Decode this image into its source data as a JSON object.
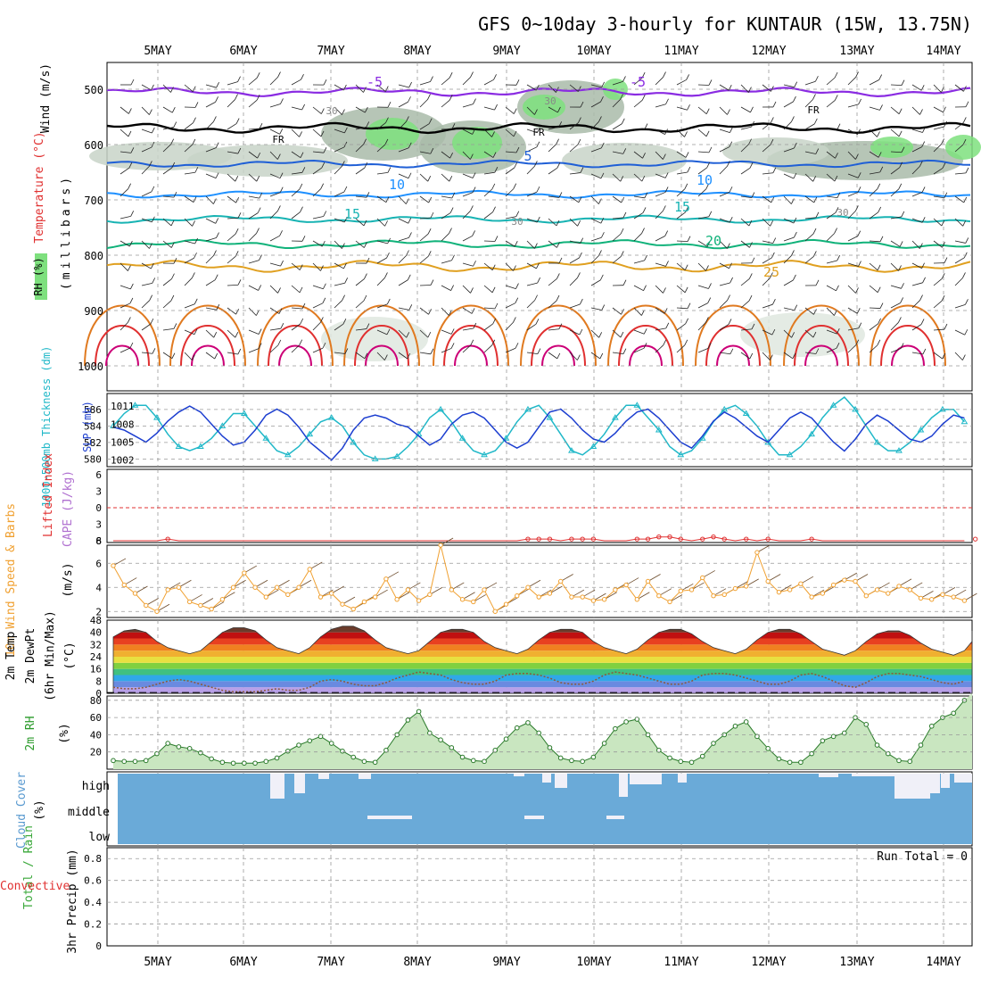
{
  "title": "GFS 0~10day 3-hourly for KUNTAUR (15W, 13.75N)",
  "dates": [
    "5MAY",
    "6MAY",
    "7MAY",
    "8MAY",
    "9MAY",
    "10MAY",
    "11MAY",
    "12MAY",
    "13MAY",
    "14MAY"
  ],
  "colors": {
    "rh_fill": "#7ee07e",
    "rh_dark": "#a9bba9",
    "temp_cold": "#8a2be2",
    "temp_freeze": "#000000",
    "temp_5": "#1f5fd6",
    "temp_10": "#1e90ff",
    "temp_15": "#17b3b3",
    "temp_20": "#10b27a",
    "temp_25": "#e0a020",
    "temp_30": "#e07a20",
    "temp_35": "#e03030",
    "temp_40": "#cc0077",
    "thickness": "#20b8c8",
    "slp": "#1c3ed0",
    "li_line": "#e03030",
    "cape": "#b070d0",
    "wind10": "#f0a030",
    "cloud_bg": "#6aaad8",
    "cloud_fill": "#f0f0f8"
  },
  "panels": {
    "upper": {
      "ylabel_wind": "Wind (m/s)",
      "ylabel_temp": "Temperature (°C)",
      "ylabel_rh": "RH (%)",
      "ylabel_mb": "(millibars)",
      "y_ticks": [
        "500",
        "600",
        "700",
        "800",
        "900",
        "1000"
      ],
      "contour_labels": [
        "-5",
        "-5",
        "FR",
        "FR",
        "FR",
        "5",
        "10",
        "10",
        "15",
        "15",
        "20",
        "25",
        "30",
        "30",
        "30",
        "30"
      ]
    },
    "pressure": {
      "ylabel_thick": "1000-500mb Thickness (dm)",
      "ylabel_slp": "SLP (mb)",
      "left_ticks": [
        "586",
        "584",
        "582",
        "580"
      ],
      "right_ticks": [
        "1011",
        "1008",
        "1005",
        "1002"
      ]
    },
    "li": {
      "ylabel_li": "Lifted Index",
      "ylabel_cape": "CAPE (J/kg)",
      "ticks": [
        "6",
        "3",
        "0",
        "3",
        "6"
      ],
      "cape_tick": "8"
    },
    "wind10": {
      "ylabel": "10m Wind Speed & Barbs",
      "unit": "(m/s)",
      "ticks": [
        "6",
        "4",
        "2"
      ]
    },
    "temp2m": {
      "ylabel_a": "2m Temp",
      "ylabel_b": "2m DewPt",
      "ylabel_c": "(6hr Min/Max)",
      "unit": "(°C)",
      "ticks": [
        "48",
        "40",
        "32",
        "24",
        "16",
        "8",
        "0"
      ]
    },
    "rh2m": {
      "ylabel": "2m RH",
      "unit": "(%)",
      "ticks": [
        "80",
        "60",
        "40",
        "20"
      ]
    },
    "cloud": {
      "ylabel": "Cloud Cover",
      "unit": "(%)",
      "levels": [
        "high",
        "middle",
        "low"
      ]
    },
    "precip": {
      "ylabel_total": "Total / Rain",
      "ylabel_conv": "Convective",
      "ylabel_main": "3hr Precip (mm)",
      "ticks": [
        "0.8",
        "0.6",
        "0.4",
        "0.2",
        "0"
      ],
      "run_total": "Run Total = 0"
    }
  },
  "chart_data": [
    {
      "type": "line",
      "name": "1000-500mb Thickness (dm)",
      "xlabel": "",
      "ylabel": "1000-500mb Thickness (dm)",
      "ylim": [
        579.5,
        587.5
      ],
      "x_step_hours": 3,
      "values": [
        584,
        585.5,
        586.5,
        586.5,
        585,
        583,
        581.5,
        581,
        581.5,
        582.5,
        584,
        585.5,
        585.5,
        584,
        582.5,
        581,
        580.5,
        581.5,
        583,
        584.5,
        585,
        584,
        582,
        580.5,
        580,
        580,
        580.3,
        581.5,
        583,
        585,
        586,
        584.5,
        582.5,
        581,
        580.5,
        581,
        582.5,
        584.5,
        586,
        586.5,
        585,
        583,
        581,
        580.5,
        581.5,
        583,
        585,
        586.5,
        586.5,
        585,
        583.5,
        581.5,
        580.5,
        581,
        582.5,
        584.5,
        586,
        586.5,
        585.5,
        584,
        582,
        580.5,
        580.5,
        581.5,
        583,
        585,
        586.5,
        587.5,
        586,
        584,
        582,
        581,
        581,
        582,
        583.5,
        585,
        586,
        586,
        584.5,
        583,
        581.5,
        581,
        581.5,
        583,
        584.5,
        586,
        586,
        584.5,
        583,
        581.5,
        581,
        581.5,
        583,
        584.5,
        585,
        583,
        581.5,
        580.5,
        580.5
      ]
    },
    {
      "type": "line",
      "name": "SLP (mb)",
      "ylabel": "SLP (mb)",
      "ylim": [
        1001.5,
        1012.5
      ],
      "x_step_hours": 3,
      "values": [
        1007.5,
        1007,
        1006,
        1005,
        1006.5,
        1008.5,
        1010,
        1011,
        1010,
        1008,
        1006,
        1004.5,
        1005,
        1007,
        1009.5,
        1010.5,
        1009.5,
        1007.5,
        1005,
        1003.5,
        1002,
        1004,
        1007,
        1009,
        1009.5,
        1009,
        1008,
        1007.5,
        1006,
        1004.5,
        1005.5,
        1008,
        1009.5,
        1010,
        1009,
        1007,
        1005,
        1004,
        1005,
        1007.5,
        1010,
        1010.5,
        1009,
        1007,
        1005.5,
        1005,
        1006.5,
        1008.5,
        1010,
        1010.5,
        1009,
        1007,
        1005,
        1004,
        1006,
        1008.5,
        1010,
        1009,
        1007.5,
        1006,
        1005,
        1007,
        1009,
        1010,
        1009,
        1007,
        1005,
        1003.5,
        1005.5,
        1008,
        1009.5,
        1008.5,
        1007,
        1005.5,
        1005,
        1006,
        1008,
        1009.5,
        1009,
        1007.5,
        1005.5,
        1004.5,
        1006,
        1008,
        1010,
        1009.5,
        1008,
        1006.5,
        1006,
        1008,
        1010,
        1011.5,
        1010.5,
        1009,
        1007,
        1006,
        1007,
        1008.5,
        1009.5
      ]
    },
    {
      "type": "line",
      "name": "Lifted Index",
      "ylabel": "Lifted Index",
      "ylim": [
        -6,
        6
      ],
      "values": [
        6,
        6,
        6,
        6,
        6,
        5.7,
        6,
        6,
        6,
        6,
        6,
        6,
        6,
        6,
        6,
        6,
        6,
        6,
        6,
        6,
        6,
        6,
        6,
        6,
        6,
        6,
        6,
        6,
        6,
        6,
        6,
        6,
        6,
        6,
        6,
        6,
        6,
        6,
        5.7,
        5.7,
        5.7,
        6,
        5.7,
        5.7,
        5.7,
        6,
        6,
        6,
        5.7,
        5.7,
        5.3,
        5.3,
        5.7,
        6,
        5.7,
        5.3,
        5.7,
        6,
        5.7,
        6,
        5.7,
        6,
        6,
        6,
        5.7,
        6,
        6,
        6,
        6,
        6,
        6,
        6,
        6,
        6,
        6,
        6,
        6,
        6,
        6,
        5.7,
        5.7,
        5.3,
        5.7,
        6,
        6,
        6,
        6,
        5.7,
        5.3,
        5.7,
        6,
        6,
        6,
        6,
        6,
        5.7,
        5.7,
        5.3,
        6
      ]
    },
    {
      "type": "line",
      "name": "10m Wind Speed",
      "ylabel": "10m Wind Speed & Barbs (m/s)",
      "ylim": [
        1.5,
        7.5
      ],
      "values": [
        5.8,
        4.2,
        3.5,
        2.5,
        2,
        3.8,
        4,
        2.8,
        2.5,
        2.2,
        3,
        4,
        5.2,
        4,
        3.2,
        4,
        3.4,
        4,
        5.5,
        3.2,
        3.5,
        2.6,
        2.2,
        2.8,
        3.2,
        4.7,
        3,
        3.8,
        2.9,
        3.4,
        7.5,
        3.8,
        3,
        2.8,
        3.8,
        2,
        2.6,
        3.3,
        4,
        3.2,
        3.5,
        4.5,
        3.2,
        3.2,
        2.9,
        3,
        3.8,
        4.2,
        3,
        4.5,
        3.3,
        2.8,
        3.7,
        3.8,
        4.8,
        3.3,
        3.4,
        3.9,
        4.1,
        6.9,
        4.5,
        3.6,
        3.8,
        4.3,
        3.2,
        3.5,
        4.2,
        4.6,
        4.5,
        3.3,
        3.8,
        3.5,
        4.1,
        3.8,
        3.1,
        3,
        3.4,
        3.2,
        2.9,
        3.5,
        5.8,
        4.1,
        3.2,
        3.8,
        2.9,
        3.2,
        3.2,
        3.8,
        3.5,
        4.6,
        3.5,
        2.8,
        3.7,
        2.8,
        2.5,
        3,
        4,
        5.2,
        3.3,
        2.5,
        3.1
      ]
    },
    {
      "type": "area",
      "name": "2m Temp",
      "ylabel": "2m Temp (°C)",
      "ylim": [
        0,
        48
      ],
      "values": [
        37,
        41,
        42,
        40,
        34,
        30,
        28,
        26,
        28,
        34,
        40,
        43,
        43,
        41,
        35,
        30,
        28,
        26,
        30,
        37,
        42,
        44,
        44,
        41,
        35,
        30,
        28,
        26,
        28,
        34,
        40,
        42,
        42,
        40,
        34,
        30,
        28,
        26,
        29,
        35,
        40,
        42,
        42,
        40,
        34,
        30,
        28,
        26,
        29,
        35,
        40,
        42,
        42,
        39,
        34,
        30,
        28,
        26,
        29,
        35,
        40,
        42,
        42,
        39,
        34,
        29,
        27,
        25,
        28,
        34,
        39,
        41,
        41,
        38,
        33,
        29,
        27,
        25,
        28,
        34,
        39,
        41,
        41,
        38,
        33,
        29,
        27,
        25,
        28,
        33,
        38,
        40,
        40,
        37,
        32,
        28,
        26,
        24
      ]
    },
    {
      "type": "line",
      "name": "2m DewPt",
      "ylabel": "2m DewPt (°C)",
      "ylim": [
        0,
        48
      ],
      "values": [
        4,
        3,
        3,
        4,
        6,
        8,
        9,
        8,
        6,
        4,
        2,
        1,
        1,
        1,
        2,
        3,
        2,
        2,
        4,
        8,
        9,
        8,
        6,
        5,
        5,
        7,
        10,
        12,
        14,
        13,
        12,
        9,
        7,
        6,
        6,
        8,
        12,
        13,
        13,
        12,
        10,
        7,
        6,
        6,
        8,
        12,
        14,
        13,
        12,
        10,
        8,
        6,
        6,
        8,
        12,
        13,
        13,
        12,
        10,
        8,
        6,
        6,
        8,
        12,
        13,
        11,
        8,
        5,
        4,
        7,
        11,
        13,
        13,
        12,
        11,
        9,
        7,
        6,
        8,
        12,
        14,
        13,
        12,
        10,
        8,
        6,
        6,
        8,
        12,
        13,
        13,
        12,
        11,
        10,
        9,
        8,
        10,
        12
      ]
    },
    {
      "type": "area",
      "name": "2m RH",
      "ylabel": "2m RH (%)",
      "ylim": [
        0,
        85
      ],
      "values": [
        10,
        9,
        9,
        10,
        18,
        30,
        26,
        24,
        19,
        12,
        8,
        7,
        7,
        7,
        9,
        13,
        21,
        28,
        33,
        38,
        30,
        21,
        14,
        9,
        8,
        22,
        40,
        57,
        67,
        42,
        34,
        25,
        14,
        10,
        9,
        22,
        35,
        48,
        54,
        42,
        25,
        13,
        10,
        9,
        14,
        30,
        47,
        55,
        58,
        40,
        22,
        13,
        9,
        8,
        15,
        30,
        40,
        50,
        55,
        38,
        24,
        12,
        8,
        8,
        18,
        33,
        38,
        42,
        60,
        52,
        28,
        18,
        10,
        9,
        28,
        50,
        60,
        65,
        80,
        88,
        50,
        28,
        15,
        9,
        10,
        22,
        40,
        50,
        55,
        60,
        44,
        22,
        12,
        9,
        12,
        24,
        40,
        52,
        66
      ]
    },
    {
      "type": "bar",
      "name": "3hr Precip",
      "ylabel": "3hr Precip (mm)",
      "ylim": [
        0,
        0.9
      ],
      "values": []
    }
  ]
}
